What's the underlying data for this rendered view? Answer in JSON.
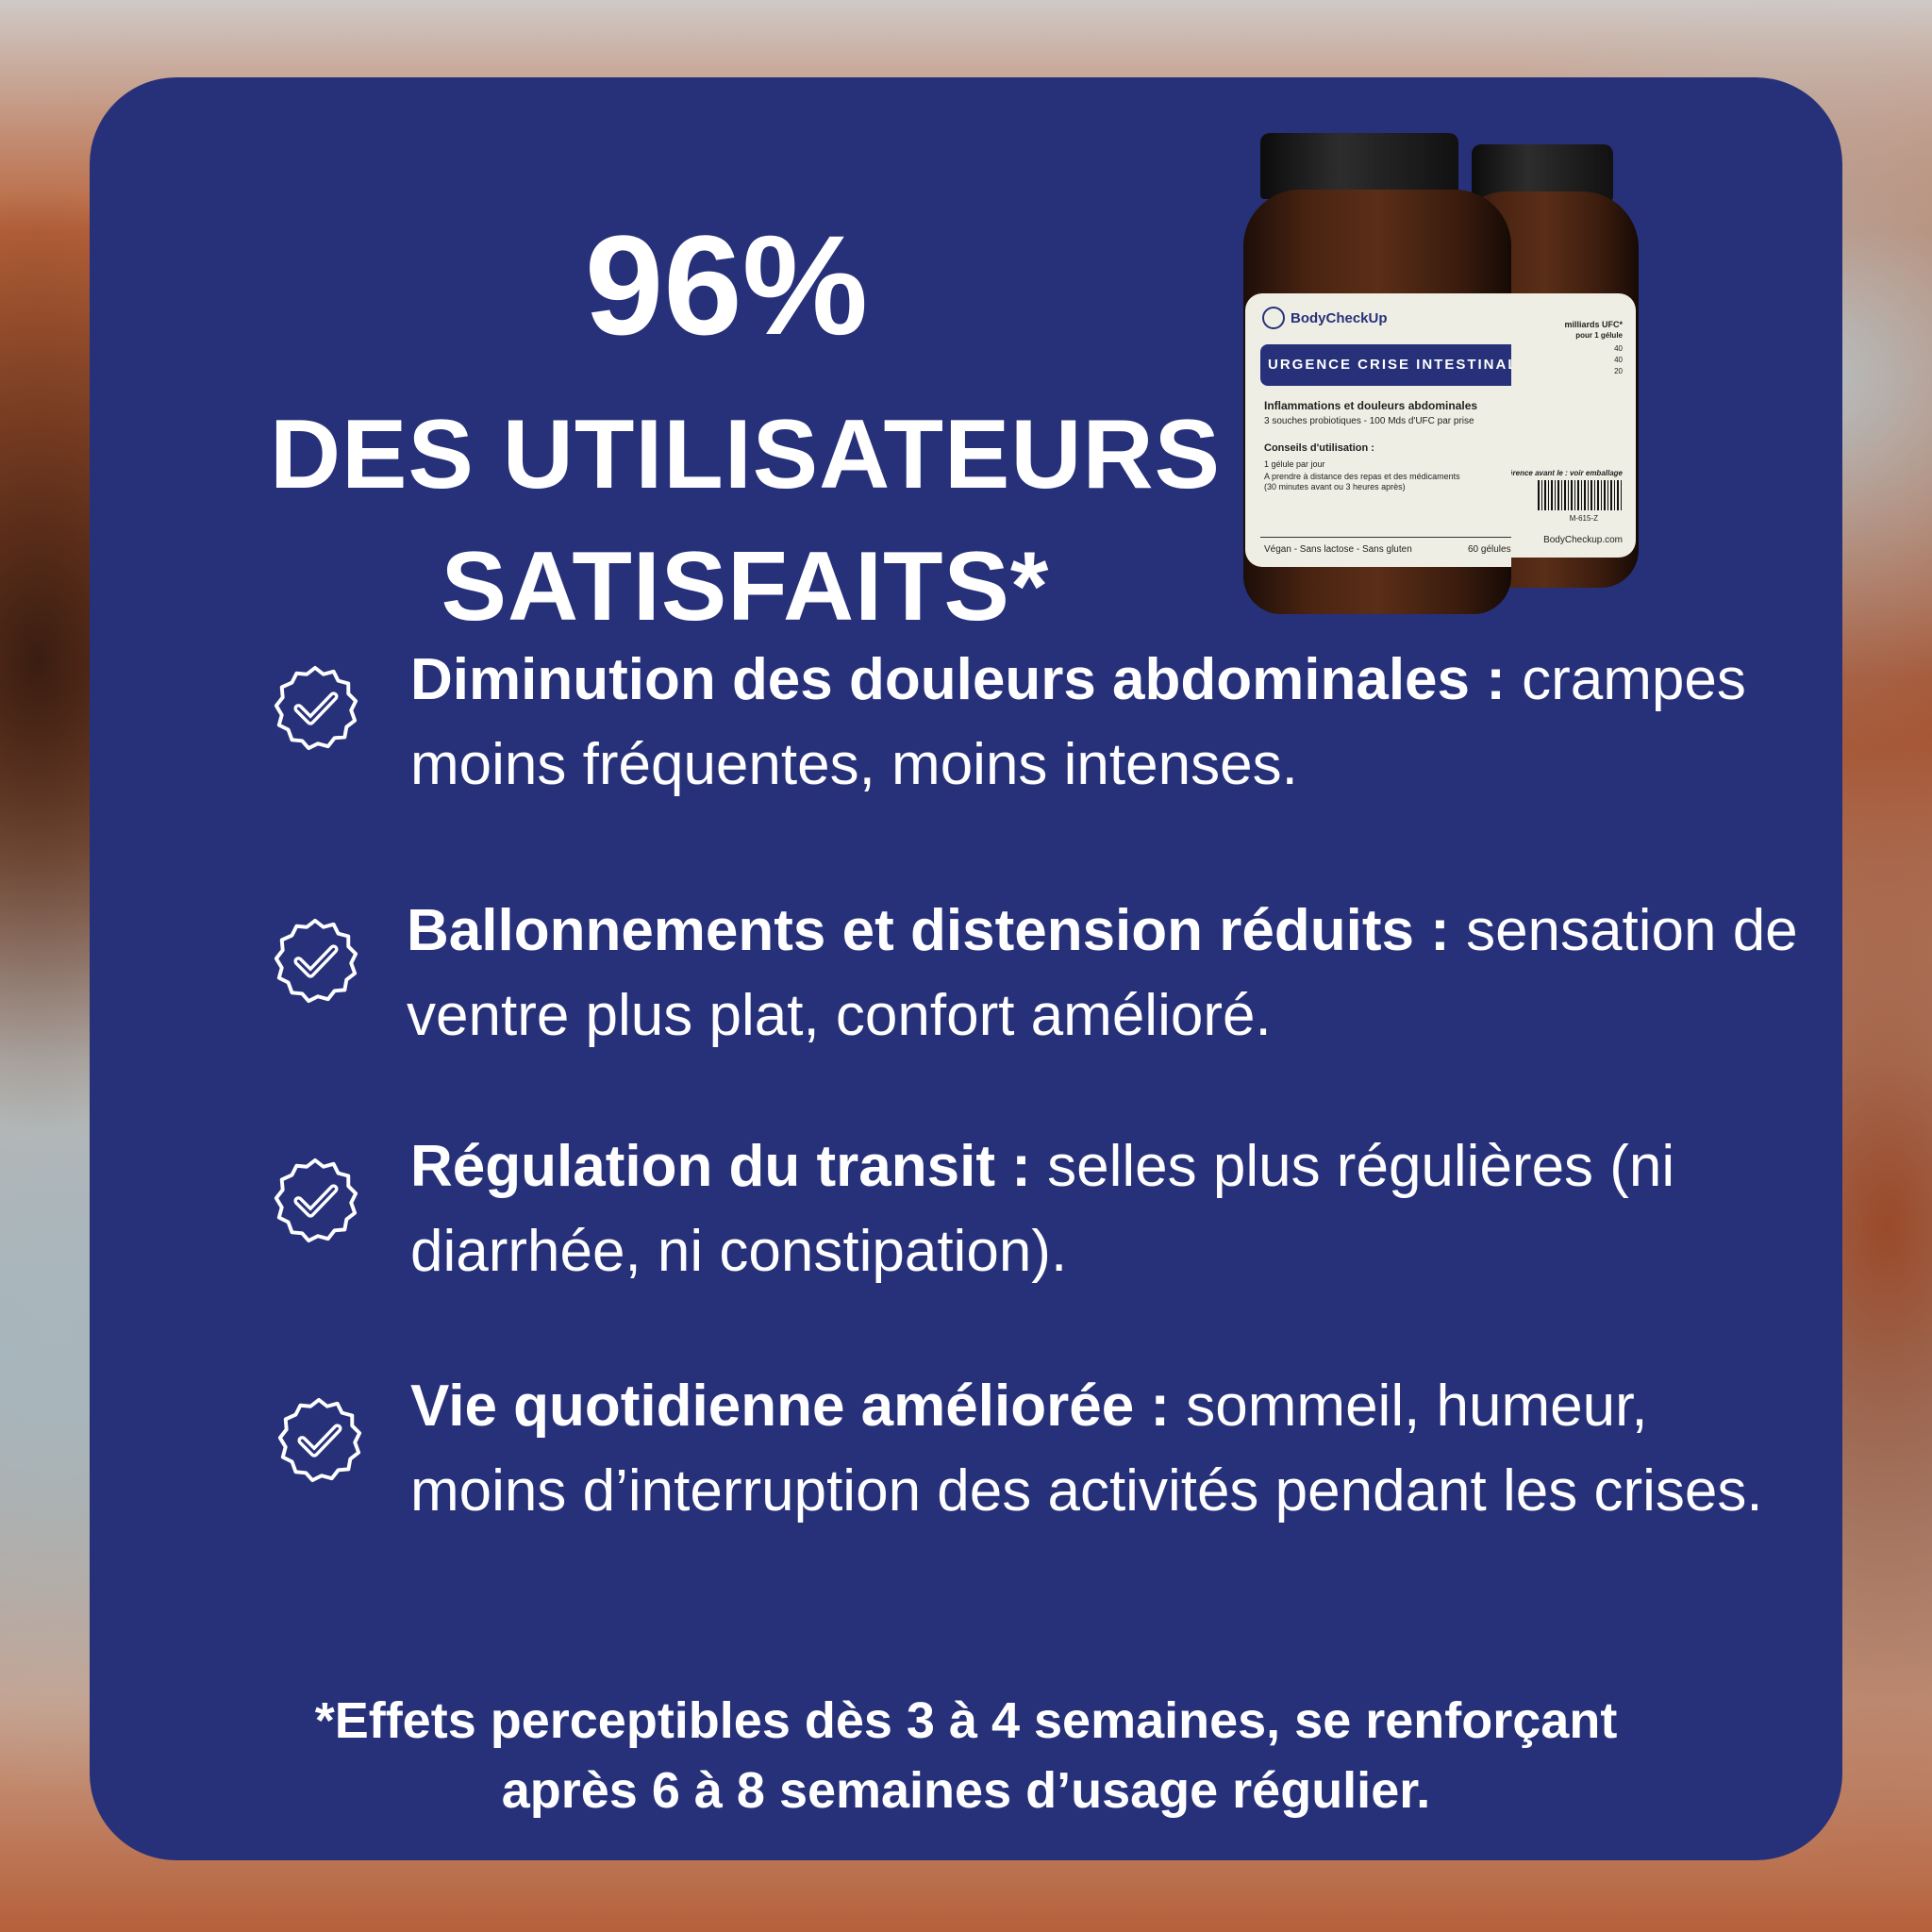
{
  "colors": {
    "card": "#27317a",
    "text": "#ffffff"
  },
  "headline": {
    "percent": "96%",
    "line1": "DES UTILISATEURS",
    "line2": "SATISFAITS*"
  },
  "product": {
    "brand": "BodyCheckUp",
    "name": "URGENCE CRISE INTESTINALE",
    "subtitle": "Inflammations et douleurs abdominales",
    "strains": "3 souches probiotiques - 100 Mds d'UFC par prise",
    "advice_title": "Conseils d'utilisation :",
    "advice_1": "1 gélule par jour",
    "advice_2": "A prendre à distance des repas et des médicaments",
    "advice_3": "(30 minutes avant ou 3 heures après)",
    "tags": "Végan - Sans lactose - Sans gluten",
    "count": "60 gélules",
    "back_header": "milliards UFC*",
    "back_sub": "pour 1 gélule",
    "back_values": [
      "40",
      "40",
      "20"
    ],
    "back_best_before": "préférence avant le : voir emballage",
    "barcode": "M-615-Z",
    "website": "BodyCheckup.com"
  },
  "items": [
    {
      "icon": "verified-badge-check-icon",
      "bold": "Diminution des douleurs abdominales :",
      "text": "crampes moins fréquentes, moins intenses."
    },
    {
      "icon": "verified-badge-check-icon",
      "bold": "Ballonnements et distension réduits :",
      "text": "sensation de ventre plus plat, confort amélioré."
    },
    {
      "icon": "verified-badge-check-icon",
      "bold": "Régulation du transit :",
      "text": "selles plus régulières (ni diarrhée, ni constipation)."
    },
    {
      "icon": "verified-badge-check-icon",
      "bold": "Vie quotidienne améliorée :",
      "text": "sommeil, humeur, moins d’interruption des activités pendant les crises."
    }
  ],
  "footer": {
    "line1": "*Effets perceptibles dès 3 à 4 semaines, se renforçant",
    "line2": "après 6 à 8 semaines d’usage régulier."
  }
}
